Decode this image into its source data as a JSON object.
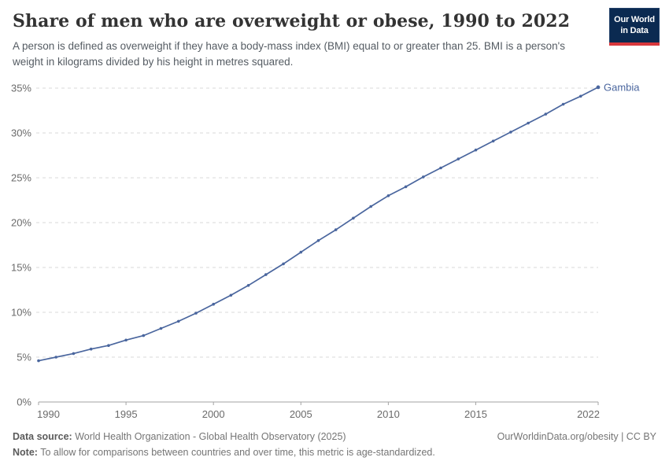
{
  "header": {
    "title": "Share of men who are overweight or obese, 1990 to 2022",
    "subtitle": "A person is defined as overweight if they have a body-mass index (BMI) equal to or greater than 25. BMI is a person's weight in kilograms divided by his height in metres squared.",
    "logo": {
      "line1": "Our World",
      "line2": "in Data"
    }
  },
  "chart_data": {
    "type": "line",
    "title": "Share of men who are overweight or obese, 1990 to 2022",
    "xlabel": "",
    "ylabel": "",
    "xlim": [
      1990,
      2022
    ],
    "ylim": [
      0,
      35
    ],
    "x_ticks": [
      1990,
      1995,
      2000,
      2005,
      2010,
      2015,
      2022
    ],
    "y_ticks": [
      0,
      5,
      10,
      15,
      20,
      25,
      30,
      35
    ],
    "y_tick_suffix": "%",
    "grid": "horizontal-dashed",
    "legend_position": "end-of-line-label",
    "series": [
      {
        "name": "Gambia",
        "color": "#4a669e",
        "x": [
          1990,
          1991,
          1992,
          1993,
          1994,
          1995,
          1996,
          1997,
          1998,
          1999,
          2000,
          2001,
          2002,
          2003,
          2004,
          2005,
          2006,
          2007,
          2008,
          2009,
          2010,
          2011,
          2012,
          2013,
          2014,
          2015,
          2016,
          2017,
          2018,
          2019,
          2020,
          2021,
          2022
        ],
        "values": [
          4.6,
          5.0,
          5.4,
          5.9,
          6.3,
          6.9,
          7.4,
          8.2,
          9.0,
          9.9,
          10.9,
          11.9,
          13.0,
          14.2,
          15.4,
          16.7,
          18.0,
          19.2,
          20.5,
          21.8,
          23.0,
          24.0,
          25.1,
          26.1,
          27.1,
          28.1,
          29.1,
          30.1,
          31.1,
          32.1,
          33.2,
          34.1,
          35.1
        ]
      }
    ]
  },
  "footer": {
    "datasource_label": "Data source:",
    "datasource_value": " World Health Organization - Global Health Observatory (2025)",
    "note_label": "Note:",
    "note_value": " To allow for comparisons between countries and over time, this metric is age-standardized.",
    "link": "OurWorldinData.org/obesity | CC BY"
  },
  "colors": {
    "accent_line": "#4a669e",
    "grid": "#d9d9d9",
    "axis": "#a3a3a3",
    "tick_text": "#6b6b6b",
    "title_text": "#333333",
    "subtitle_text": "#555c63",
    "logo_bg": "#0b2a51",
    "logo_stripe": "#d8373c"
  }
}
